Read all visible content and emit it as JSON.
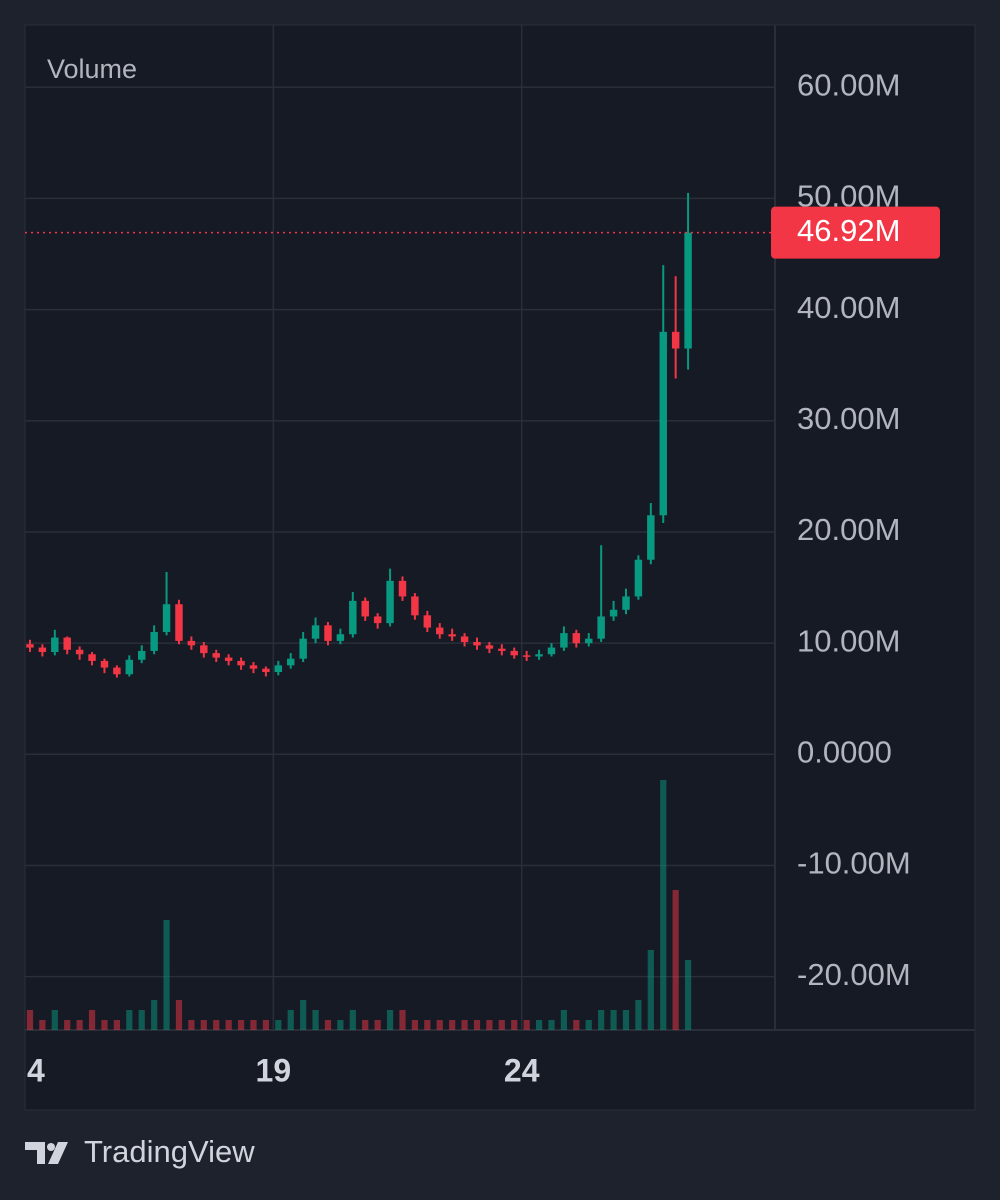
{
  "chart_data": {
    "type": "candlestick",
    "overlay_label": "Volume",
    "brand": "TradingView",
    "x": [
      14.1,
      14.35,
      14.6,
      14.85,
      15.1,
      15.35,
      15.6,
      15.85,
      16.1,
      16.35,
      16.6,
      16.85,
      17.1,
      17.35,
      17.6,
      17.85,
      18.1,
      18.35,
      18.6,
      18.85,
      19.1,
      19.35,
      19.6,
      19.85,
      20.1,
      20.35,
      20.6,
      20.85,
      21.1,
      21.35,
      21.6,
      21.85,
      22.1,
      22.35,
      22.6,
      22.85,
      23.1,
      23.35,
      23.6,
      23.85,
      24.1,
      24.35,
      24.6,
      24.85,
      25.1,
      25.35,
      25.6,
      25.85,
      26.1,
      26.35,
      26.6,
      26.85,
      27.1,
      27.35
    ],
    "open": [
      9900000,
      9600000,
      9200000,
      10500000,
      9400000,
      9000000,
      8400000,
      7800000,
      7200000,
      8500000,
      9300000,
      11000000,
      13500000,
      10200000,
      9800000,
      9100000,
      8700000,
      8400000,
      8000000,
      7700000,
      7400000,
      8000000,
      8600000,
      10400000,
      11600000,
      10200000,
      10800000,
      13800000,
      12400000,
      11800000,
      15600000,
      14200000,
      12500000,
      11400000,
      10800000,
      10600000,
      10100000,
      9800000,
      9500000,
      9300000,
      8900000,
      8800000,
      9000000,
      9600000,
      10900000,
      10000000,
      10400000,
      12400000,
      13000000,
      14200000,
      17500000,
      21500000,
      38000000,
      36500000
    ],
    "high": [
      10300000,
      9900000,
      11200000,
      10600000,
      9700000,
      9200000,
      8600000,
      8000000,
      8900000,
      9800000,
      11600000,
      16400000,
      13900000,
      10600000,
      10100000,
      9400000,
      9000000,
      8700000,
      8300000,
      7900000,
      8400000,
      9100000,
      11000000,
      12300000,
      11900000,
      11300000,
      14600000,
      14100000,
      12700000,
      16700000,
      16000000,
      14500000,
      12900000,
      11800000,
      11300000,
      10900000,
      10500000,
      10100000,
      9900000,
      9600000,
      9300000,
      9400000,
      10000000,
      11500000,
      11200000,
      10900000,
      18800000,
      13800000,
      14900000,
      17900000,
      22600000,
      44000000,
      43000000,
      50500000
    ],
    "low": [
      9200000,
      8800000,
      8900000,
      9000000,
      8500000,
      8000000,
      7300000,
      6900000,
      7000000,
      8200000,
      9000000,
      10700000,
      9900000,
      9400000,
      8700000,
      8300000,
      8000000,
      7600000,
      7300000,
      7000000,
      7100000,
      7700000,
      8300000,
      10000000,
      9800000,
      9900000,
      10500000,
      12000000,
      11300000,
      11500000,
      13800000,
      12100000,
      11000000,
      10400000,
      10200000,
      9700000,
      9400000,
      9100000,
      8900000,
      8600000,
      8400000,
      8500000,
      8800000,
      9300000,
      9600000,
      9700000,
      10100000,
      12000000,
      12600000,
      13900000,
      17100000,
      20800000,
      33800000,
      34600000
    ],
    "close": [
      9600000,
      9200000,
      10500000,
      9400000,
      9000000,
      8400000,
      7800000,
      7200000,
      8500000,
      9300000,
      11000000,
      13500000,
      10200000,
      9800000,
      9100000,
      8700000,
      8400000,
      8000000,
      7700000,
      7400000,
      8000000,
      8600000,
      10400000,
      11600000,
      10200000,
      10800000,
      13800000,
      12400000,
      11800000,
      15600000,
      14200000,
      12500000,
      11400000,
      10800000,
      10600000,
      10100000,
      9800000,
      9500000,
      9300000,
      8900000,
      8800000,
      9000000,
      9600000,
      10900000,
      10000000,
      10400000,
      12400000,
      13000000,
      14200000,
      17500000,
      21500000,
      38000000,
      36500000,
      46920000
    ],
    "volume": [
      2,
      1,
      2,
      1,
      1,
      2,
      1,
      1,
      2,
      2,
      3,
      11,
      3,
      1,
      1,
      1,
      1,
      1,
      1,
      1,
      1,
      2,
      3,
      2,
      1,
      1,
      2,
      1,
      1,
      2,
      2,
      1,
      1,
      1,
      1,
      1,
      1,
      1,
      1,
      1,
      1,
      1,
      1,
      2,
      1,
      1,
      2,
      2,
      2,
      3,
      8,
      25,
      14,
      7
    ],
    "up_color": "#089981",
    "down_color": "#f23645",
    "last_price": 46920000,
    "last_price_label": "46.92M",
    "xlim": [
      14.0,
      29.1
    ],
    "xticks": [
      {
        "value": 14,
        "label": "4"
      },
      19,
      24
    ],
    "ylim": [
      -24800000,
      65600000
    ],
    "yticks": [
      {
        "value": 60000000,
        "label": "60.00M"
      },
      {
        "value": 50000000,
        "label": "50.00M"
      },
      {
        "value": 40000000,
        "label": "40.00M"
      },
      {
        "value": 30000000,
        "label": "30.00M"
      },
      {
        "value": 20000000,
        "label": "20.00M"
      },
      {
        "value": 10000000,
        "label": "10.00M"
      },
      {
        "value": 0,
        "label": "0.0000"
      },
      {
        "value": -10000000,
        "label": "-10.00M"
      },
      {
        "value": -20000000,
        "label": "-20.00M"
      }
    ],
    "grid": true
  }
}
